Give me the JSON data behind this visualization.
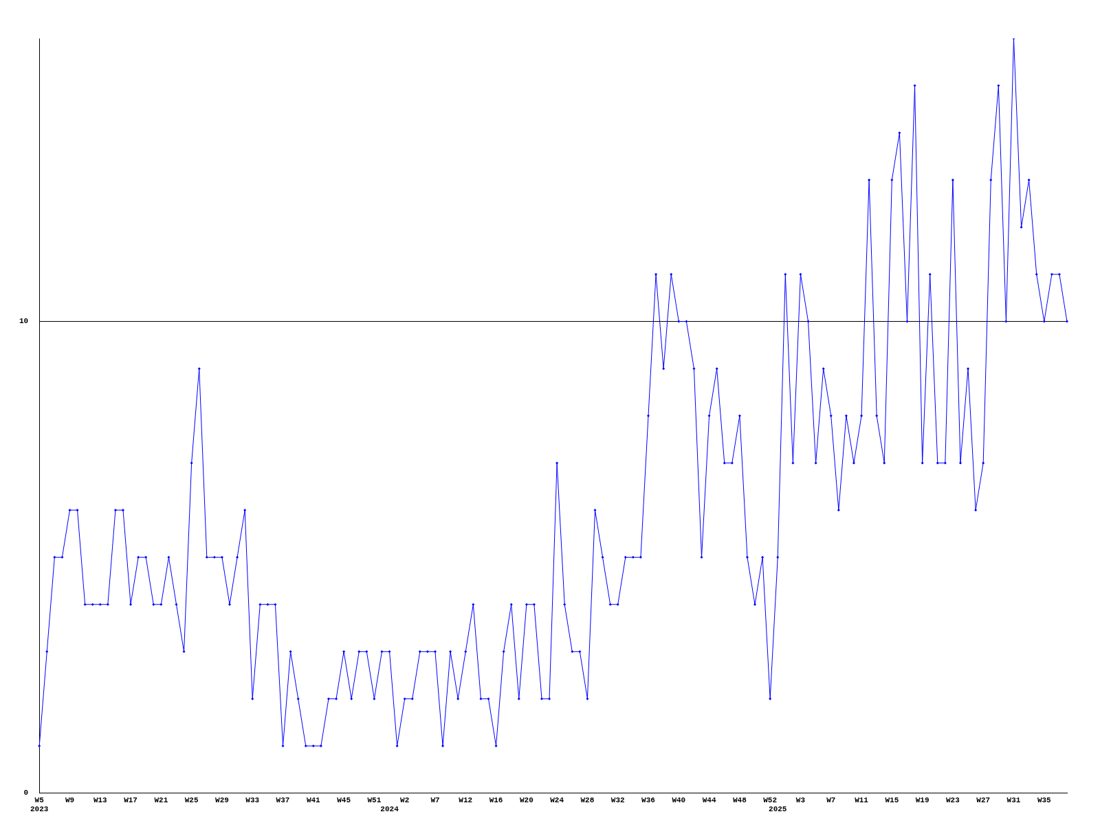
{
  "chart_data": {
    "type": "line",
    "categories": [
      "W5\n2023",
      null,
      null,
      null,
      "W9",
      null,
      null,
      null,
      "W13",
      null,
      null,
      null,
      "W17",
      null,
      null,
      null,
      "W21",
      null,
      null,
      null,
      "W25",
      null,
      null,
      null,
      "W29",
      null,
      null,
      null,
      "W33",
      null,
      null,
      null,
      "W37",
      null,
      null,
      null,
      "W41",
      null,
      null,
      null,
      "W45",
      null,
      null,
      null,
      "W51",
      null,
      "\n2024",
      null,
      "W2",
      null,
      null,
      null,
      "W7",
      null,
      null,
      null,
      "W12",
      null,
      null,
      null,
      "W16",
      null,
      null,
      null,
      "W20",
      null,
      null,
      null,
      "W24",
      null,
      null,
      null,
      "W28",
      null,
      null,
      null,
      "W32",
      null,
      null,
      null,
      "W36",
      null,
      null,
      null,
      "W40",
      null,
      null,
      null,
      "W44",
      null,
      null,
      null,
      "W48",
      null,
      null,
      null,
      "W52",
      "\n2025",
      null,
      null,
      "W3",
      null,
      null,
      null,
      "W7",
      null,
      null,
      null,
      "W11",
      null,
      null,
      null,
      "W15",
      null,
      null,
      null,
      "W19",
      null,
      null,
      null,
      "W23",
      null,
      null,
      null,
      "W27",
      null,
      null,
      null,
      "W31",
      null,
      null,
      null,
      "W35",
      null,
      null,
      null
    ],
    "series": [
      {
        "color": "#0000ff",
        "values": [
          1,
          3,
          5,
          5,
          6,
          6,
          4,
          4,
          4,
          4,
          6,
          6,
          4,
          5,
          5,
          4,
          4,
          5,
          4,
          3,
          7,
          9,
          5,
          5,
          5,
          4,
          5,
          6,
          2,
          4,
          4,
          4,
          1,
          3,
          2,
          1,
          1,
          1,
          2,
          2,
          3,
          2,
          3,
          3,
          2,
          3,
          3,
          1,
          2,
          2,
          3,
          3,
          3,
          1,
          3,
          2,
          3,
          4,
          2,
          2,
          1,
          3,
          4,
          2,
          4,
          4,
          2,
          2,
          7,
          4,
          3,
          3,
          2,
          6,
          5,
          4,
          4,
          5,
          5,
          5,
          8,
          11,
          9,
          11,
          10,
          10,
          9,
          5,
          8,
          9,
          7,
          7,
          8,
          5,
          4,
          5,
          2,
          5,
          11,
          7,
          11,
          10,
          7,
          9,
          8,
          6,
          8,
          7,
          8,
          13,
          8,
          7,
          13,
          14,
          10,
          15,
          7,
          11,
          7,
          7,
          13,
          7,
          9,
          6,
          7,
          13,
          15,
          10,
          16,
          12,
          13,
          11,
          10,
          11,
          11,
          10
        ]
      }
    ],
    "ylim": [
      0,
      16
    ],
    "yticks": [
      0,
      10
    ],
    "grid": "y",
    "legend": false,
    "marker": "diamond",
    "line_style": "solid"
  }
}
